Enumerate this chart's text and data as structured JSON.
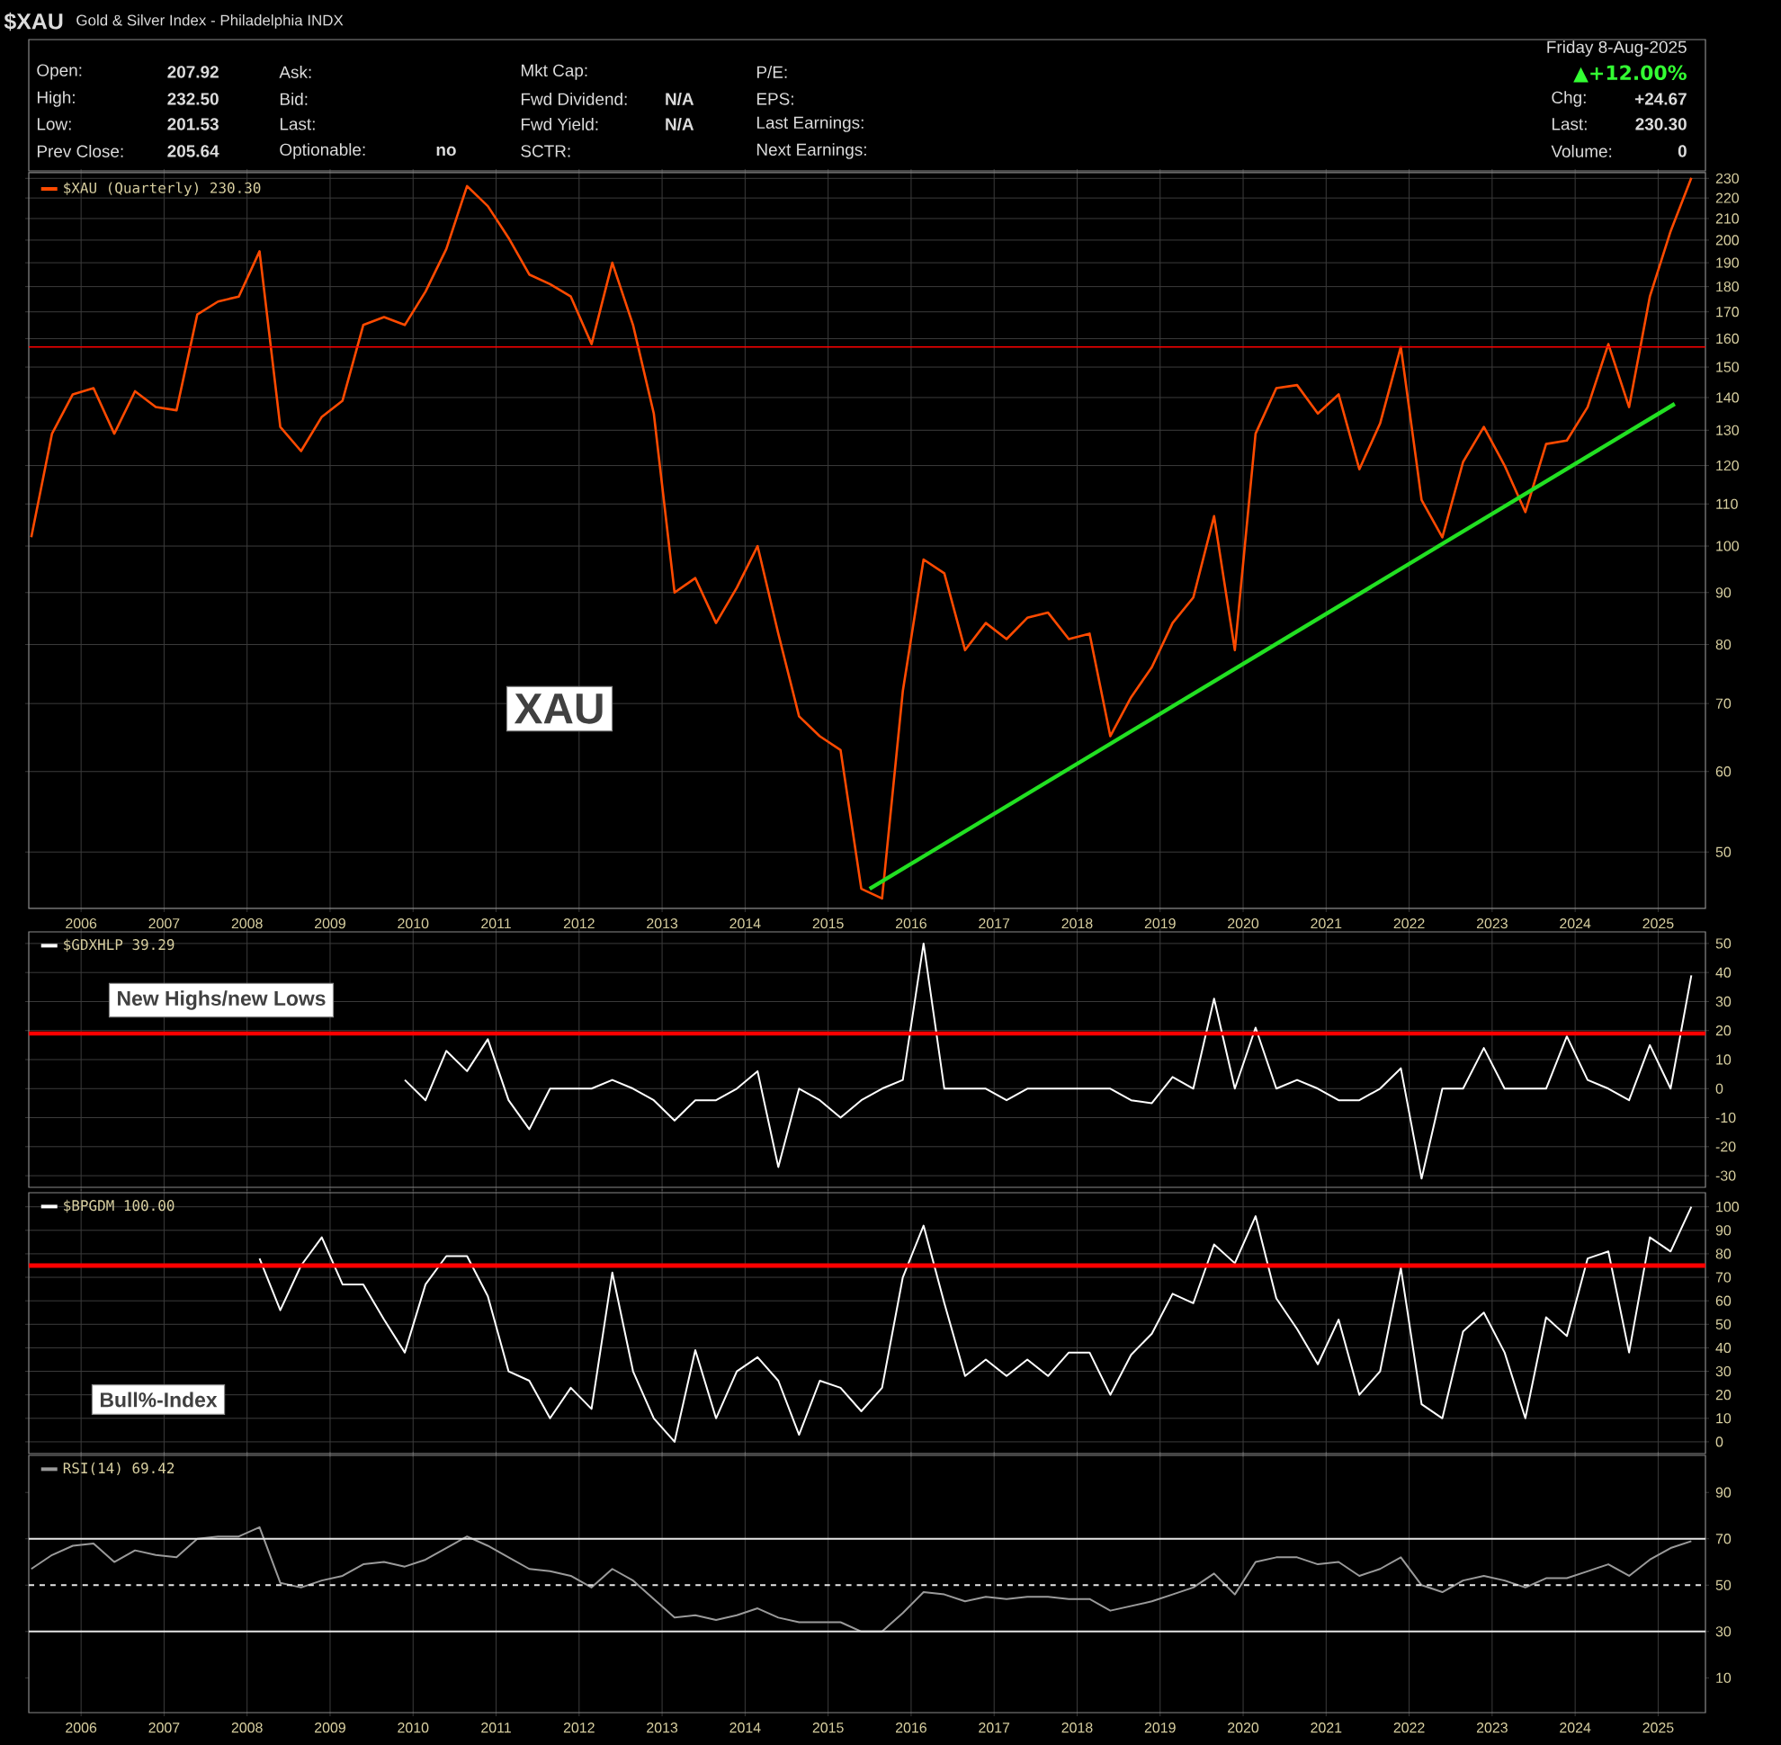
{
  "chart_data": [
    {
      "type": "other",
      "title": "$XAU",
      "subtitle": "Gold & Silver Index - Philadelphia INDX",
      "annotations": [
        "Open:",
        "High:",
        "Low:",
        "Prev Close:",
        "207.92",
        "232.50",
        "201.53",
        "205.64",
        "Ask:",
        "Bid:",
        "Last:",
        "Optionable:",
        "no",
        "Mkt Cap:",
        "Fwd Dividend:",
        "Fwd Yield:",
        "SCTR:",
        "N/A",
        "N/A",
        "P/E:",
        "EPS:",
        "Last Earnings:",
        "Next Earnings:",
        "Friday  8-Aug-2025",
        "▲+12.00%",
        "Chg:",
        "+24.67",
        "Last:",
        "230.30",
        "Volume:",
        "0"
      ]
    },
    {
      "type": "line",
      "log": true,
      "grid": true,
      "legend": "top left",
      "xlim": [
        2005.37,
        2025.57
      ],
      "ylim": [
        44,
        233
      ],
      "xticks": [
        2006,
        2007,
        2008,
        2009,
        2010,
        2011,
        2012,
        2013,
        2014,
        2015,
        2016,
        2017,
        2018,
        2019,
        2020,
        2021,
        2022,
        2023,
        2024,
        2025
      ],
      "yticks": [
        50,
        60,
        70,
        80,
        90,
        100,
        110,
        120,
        130,
        140,
        150,
        160,
        170,
        180,
        190,
        200,
        210,
        220,
        230
      ],
      "x": [
        2005.4,
        2005.65,
        2005.9,
        2006.15,
        2006.4,
        2006.65,
        2006.9,
        2007.15,
        2007.4,
        2007.65,
        2007.9,
        2008.15,
        2008.4,
        2008.65,
        2008.9,
        2009.15,
        2009.4,
        2009.65,
        2009.9,
        2010.15,
        2010.4,
        2010.65,
        2010.9,
        2011.15,
        2011.4,
        2011.65,
        2011.9,
        2012.15,
        2012.4,
        2012.65,
        2012.9,
        2013.15,
        2013.4,
        2013.65,
        2013.9,
        2014.15,
        2014.4,
        2014.65,
        2014.9,
        2015.15,
        2015.4,
        2015.65,
        2015.9,
        2016.15,
        2016.4,
        2016.65,
        2016.9,
        2017.15,
        2017.4,
        2017.65,
        2017.9,
        2018.15,
        2018.4,
        2018.65,
        2018.9,
        2019.15,
        2019.4,
        2019.65,
        2019.9,
        2020.15,
        2020.4,
        2020.65,
        2020.9,
        2021.15,
        2021.4,
        2021.65,
        2021.9,
        2022.15,
        2022.4,
        2022.65,
        2022.9,
        2023.15,
        2023.4,
        2023.65,
        2023.9,
        2024.15,
        2024.4,
        2024.65,
        2024.9,
        2025.15,
        2025.4
      ],
      "series": [
        {
          "name": "$XAU (Quarterly) 230.30",
          "color": "#ff4a00",
          "values": [
            102,
            129,
            141,
            143,
            129,
            142,
            137,
            136,
            169,
            174,
            176,
            195,
            131,
            124,
            134,
            139,
            165,
            168,
            165,
            178,
            196,
            226,
            216,
            201,
            185,
            181,
            176,
            158,
            190,
            165,
            135,
            90,
            93,
            84,
            91,
            100,
            82,
            68,
            65,
            63,
            46,
            45,
            72,
            97,
            94,
            79,
            84,
            81,
            85,
            86,
            81,
            82,
            65,
            71,
            76,
            84,
            89,
            107,
            79,
            129,
            143,
            144,
            135,
            141,
            119,
            132,
            157,
            111,
            102,
            121,
            131,
            120,
            108,
            126,
            127,
            137,
            158,
            137,
            176,
            204,
            230.3
          ]
        },
        {
          "type": "line",
          "color": "#22e022",
          "x": [
            2015.5,
            2025.2
          ],
          "values": [
            46,
            138
          ]
        }
      ],
      "ref_lines": [
        {
          "axis": "y",
          "value": 157,
          "color": "#ff0000"
        }
      ],
      "annotations": [
        "XAU"
      ]
    },
    {
      "type": "line",
      "grid": true,
      "legend": "top left",
      "tick_labels": "y",
      "xlim": [
        2005.37,
        2025.57
      ],
      "ylim": [
        -34,
        54
      ],
      "xticks": [
        2006,
        2007,
        2008,
        2009,
        2010,
        2011,
        2012,
        2013,
        2014,
        2015,
        2016,
        2017,
        2018,
        2019,
        2020,
        2021,
        2022,
        2023,
        2024,
        2025
      ],
      "yticks": [
        -30,
        -20,
        -10,
        0,
        10,
        20,
        30,
        40,
        50
      ],
      "series": [
        {
          "name": "$GDXHLP 39.29",
          "color": "#ffffff",
          "x": [
            2009.9,
            2010.15,
            2010.4,
            2010.65,
            2010.9,
            2011.15,
            2011.4,
            2011.65,
            2011.9,
            2012.15,
            2012.4,
            2012.65,
            2012.9,
            2013.15,
            2013.4,
            2013.65,
            2013.9,
            2014.15,
            2014.4,
            2014.65,
            2014.9,
            2015.15,
            2015.4,
            2015.65,
            2015.9,
            2016.15,
            2016.4,
            2016.65,
            2016.9,
            2017.15,
            2017.4,
            2017.65,
            2017.9,
            2018.15,
            2018.4,
            2018.65,
            2018.9,
            2019.15,
            2019.4,
            2019.65,
            2019.9,
            2020.15,
            2020.4,
            2020.65,
            2020.9,
            2021.15,
            2021.4,
            2021.65,
            2021.9,
            2022.15,
            2022.4,
            2022.65,
            2022.9,
            2023.15,
            2023.4,
            2023.65,
            2023.9,
            2024.15,
            2024.4,
            2024.65,
            2024.9,
            2025.15,
            2025.4
          ],
          "values": [
            3,
            -4,
            13,
            6,
            17,
            -4,
            -14,
            0,
            0,
            0,
            3,
            0,
            -4,
            -11,
            -4,
            -4,
            0,
            6,
            -27,
            0,
            -4,
            -10,
            -4,
            0,
            3,
            50,
            0,
            0,
            0,
            -4,
            0,
            0,
            0,
            0,
            0,
            -4,
            -5,
            4,
            0,
            31,
            0,
            21,
            0,
            3,
            0,
            -4,
            -4,
            0,
            7,
            -31,
            0,
            0,
            14,
            0,
            0,
            0,
            18,
            3,
            0,
            -4,
            15,
            0,
            39
          ]
        }
      ],
      "ref_lines": [
        {
          "axis": "y",
          "value": 19,
          "color": "#ff0000"
        }
      ],
      "annotations": [
        "New Highs/new Lows"
      ]
    },
    {
      "type": "line",
      "grid": true,
      "legend": "top left",
      "tick_labels": "y",
      "xlim": [
        2005.37,
        2025.57
      ],
      "ylim": [
        -5,
        106
      ],
      "xticks": [
        2006,
        2007,
        2008,
        2009,
        2010,
        2011,
        2012,
        2013,
        2014,
        2015,
        2016,
        2017,
        2018,
        2019,
        2020,
        2021,
        2022,
        2023,
        2024,
        2025
      ],
      "yticks": [
        0,
        10,
        20,
        30,
        40,
        50,
        60,
        70,
        80,
        90,
        100
      ],
      "series": [
        {
          "name": "$BPGDM 100.00",
          "color": "#ffffff",
          "x": [
            2008.15,
            2008.4,
            2008.65,
            2008.9,
            2009.15,
            2009.4,
            2009.65,
            2009.9,
            2010.15,
            2010.4,
            2010.65,
            2010.9,
            2011.15,
            2011.4,
            2011.65,
            2011.9,
            2012.15,
            2012.4,
            2012.65,
            2012.9,
            2013.15,
            2013.4,
            2013.65,
            2013.9,
            2014.15,
            2014.4,
            2014.65,
            2014.9,
            2015.15,
            2015.4,
            2015.65,
            2015.9,
            2016.15,
            2016.4,
            2016.65,
            2016.9,
            2017.15,
            2017.4,
            2017.65,
            2017.9,
            2018.15,
            2018.4,
            2018.65,
            2018.9,
            2019.15,
            2019.4,
            2019.65,
            2019.9,
            2020.15,
            2020.4,
            2020.65,
            2020.9,
            2021.15,
            2021.4,
            2021.65,
            2021.9,
            2022.15,
            2022.4,
            2022.65,
            2022.9,
            2023.15,
            2023.4,
            2023.65,
            2023.9,
            2024.15,
            2024.4,
            2024.65,
            2024.9,
            2025.15,
            2025.4
          ],
          "values": [
            78,
            56,
            75,
            87,
            67,
            67,
            52,
            38,
            67,
            79,
            79,
            62,
            30,
            26,
            10,
            23,
            14,
            72,
            30,
            10,
            0,
            39,
            10,
            30,
            36,
            26,
            3,
            26,
            23,
            13,
            23,
            70,
            92,
            59,
            28,
            35,
            28,
            35,
            28,
            38,
            38,
            20,
            37,
            46,
            63,
            59,
            84,
            76,
            96,
            61,
            48,
            33,
            52,
            20,
            30,
            74,
            16,
            10,
            47,
            55,
            38,
            10,
            53,
            45,
            78,
            81,
            38,
            87,
            81,
            100
          ]
        }
      ],
      "ref_lines": [
        {
          "axis": "y",
          "value": 75,
          "color": "#ff0000"
        }
      ],
      "annotations": [
        "Bull%-Index"
      ]
    },
    {
      "type": "line",
      "grid": "x",
      "legend": "top left",
      "xlim": [
        2005.37,
        2025.57
      ],
      "ylim": [
        -5,
        106
      ],
      "xticks": [
        2006,
        2007,
        2008,
        2009,
        2010,
        2011,
        2012,
        2013,
        2014,
        2015,
        2016,
        2017,
        2018,
        2019,
        2020,
        2021,
        2022,
        2023,
        2024,
        2025
      ],
      "yticks": [
        10,
        30,
        50,
        70,
        90
      ],
      "x": [
        2005.4,
        2005.65,
        2005.9,
        2006.15,
        2006.4,
        2006.65,
        2006.9,
        2007.15,
        2007.4,
        2007.65,
        2007.9,
        2008.15,
        2008.4,
        2008.65,
        2008.9,
        2009.15,
        2009.4,
        2009.65,
        2009.9,
        2010.15,
        2010.4,
        2010.65,
        2010.9,
        2011.15,
        2011.4,
        2011.65,
        2011.9,
        2012.15,
        2012.4,
        2012.65,
        2012.9,
        2013.15,
        2013.4,
        2013.65,
        2013.9,
        2014.15,
        2014.4,
        2014.65,
        2014.9,
        2015.15,
        2015.4,
        2015.65,
        2015.9,
        2016.15,
        2016.4,
        2016.65,
        2016.9,
        2017.15,
        2017.4,
        2017.65,
        2017.9,
        2018.15,
        2018.4,
        2018.65,
        2018.9,
        2019.15,
        2019.4,
        2019.65,
        2019.9,
        2020.15,
        2020.4,
        2020.65,
        2020.9,
        2021.15,
        2021.4,
        2021.65,
        2021.9,
        2022.15,
        2022.4,
        2022.65,
        2022.9,
        2023.15,
        2023.4,
        2023.65,
        2023.9,
        2024.15,
        2024.4,
        2024.65,
        2024.9,
        2025.15,
        2025.4
      ],
      "series": [
        {
          "name": "RSI(14) 69.42",
          "color": "#9a9a9a",
          "values": [
            57,
            63,
            67,
            68,
            60,
            65,
            63,
            62,
            70,
            71,
            71,
            75,
            51,
            49,
            52,
            54,
            59,
            60,
            58,
            61,
            66,
            71,
            67,
            62,
            57,
            56,
            54,
            49,
            57,
            52,
            44,
            36,
            37,
            35,
            37,
            40,
            36,
            34,
            34,
            34,
            30,
            30,
            38,
            47,
            46,
            43,
            45,
            44,
            45,
            45,
            44,
            44,
            39,
            41,
            43,
            46,
            49,
            55,
            46,
            60,
            62,
            62,
            59,
            60,
            54,
            57,
            62,
            50,
            47,
            52,
            54,
            52,
            49,
            53,
            53,
            56,
            59,
            54,
            61,
            66,
            69
          ]
        }
      ],
      "ref_lines": [
        {
          "axis": "y",
          "value": 70,
          "color": "#e6e6e6"
        },
        {
          "axis": "y",
          "value": 50,
          "color": "#e6e6e6",
          "line_style": "dashed"
        },
        {
          "axis": "y",
          "value": 30,
          "color": "#e6e6e6"
        }
      ]
    }
  ]
}
